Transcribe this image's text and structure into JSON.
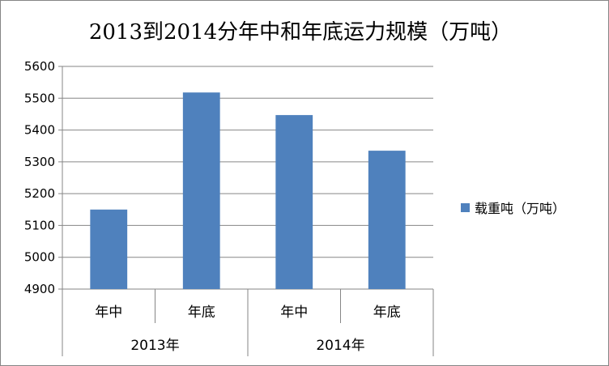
{
  "chart_data": {
    "type": "bar",
    "title": "2013到2014分年中和年底运力规模（万吨）",
    "categories": [
      "年中",
      "年底",
      "年中",
      "年底"
    ],
    "groups": [
      {
        "label": "2013年",
        "categories": [
          "年中",
          "年底"
        ]
      },
      {
        "label": "2014年",
        "categories": [
          "年中",
          "年底"
        ]
      }
    ],
    "series": [
      {
        "name": "载重吨（万吨）",
        "values": [
          5150,
          5518,
          5447,
          5335
        ],
        "color": "#4F81BD"
      }
    ],
    "ylim": [
      4900,
      5600
    ],
    "yticks": [
      4900,
      5000,
      5100,
      5200,
      5300,
      5400,
      5500,
      5600
    ],
    "grid": true,
    "legend_position": "right"
  }
}
